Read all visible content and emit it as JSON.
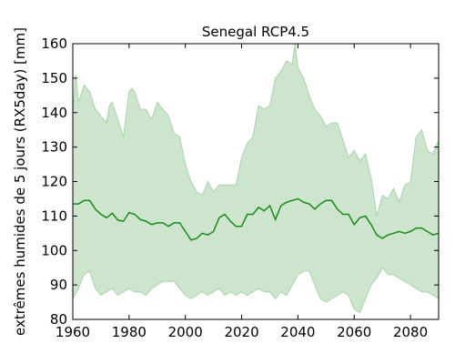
{
  "chart_data": {
    "type": "line",
    "title": "Senegal  RCP4.5",
    "xlabel": "",
    "ylabel": "extrêmes humides de 5 jours (RX5day) [mm]",
    "xlim": [
      1960,
      2090
    ],
    "ylim": [
      80,
      160
    ],
    "xticks": [
      1960,
      1980,
      2000,
      2020,
      2040,
      2060,
      2080
    ],
    "yticks": [
      80,
      90,
      100,
      110,
      120,
      130,
      140,
      150,
      160
    ],
    "grid": false,
    "colors": {
      "line": "#1a8a1a",
      "band": "#cce5cc",
      "band_edge": "#a8d4a8"
    },
    "series": [
      {
        "kind": "line",
        "x": [
          1960,
          1962,
          1964,
          1966,
          1968,
          1970,
          1972,
          1974,
          1976,
          1978,
          1980,
          1982,
          1984,
          1986,
          1988,
          1990,
          1992,
          1994,
          1996,
          1998,
          2000,
          2002,
          2004,
          2006,
          2008,
          2010,
          2012,
          2014,
          2016,
          2018,
          2020,
          2022,
          2024,
          2026,
          2028,
          2030,
          2032,
          2034,
          2036,
          2038,
          2040,
          2042,
          2044,
          2046,
          2048,
          2050,
          2052,
          2054,
          2056,
          2058,
          2060,
          2062,
          2064,
          2066,
          2068,
          2070,
          2072,
          2074,
          2076,
          2078,
          2080,
          2082,
          2084,
          2086,
          2088,
          2090
        ],
        "y": [
          113.5,
          113.5,
          114.5,
          114.5,
          112,
          110.5,
          109.5,
          110.8,
          108.8,
          108.5,
          111,
          110.5,
          109,
          108.5,
          107.5,
          108,
          108,
          107,
          108,
          108,
          105.5,
          103,
          103.5,
          105,
          104.5,
          105.5,
          109.5,
          110.5,
          108.5,
          107,
          107,
          110.5,
          110.5,
          112.5,
          111.5,
          113,
          109,
          113,
          114,
          114.5,
          115,
          114,
          113.5,
          112,
          113.5,
          114.5,
          114.5,
          112,
          110.5,
          110.5,
          107.5,
          109.5,
          110,
          107.5,
          104.5,
          103.5,
          104.5,
          105,
          105.5,
          105,
          105.5,
          106.5,
          106.5,
          105.5,
          104.5,
          105
        ]
      },
      {
        "kind": "band-upper",
        "x": [
          1960,
          1961,
          1962,
          1964,
          1966,
          1968,
          1970,
          1972,
          1973,
          1974,
          1976,
          1978,
          1980,
          1981,
          1982,
          1984,
          1986,
          1988,
          1990,
          1992,
          1994,
          1996,
          1998,
          2000,
          2002,
          2004,
          2006,
          2008,
          2010,
          2012,
          2014,
          2016,
          2018,
          2020,
          2022,
          2024,
          2026,
          2028,
          2030,
          2032,
          2034,
          2036,
          2038,
          2039,
          2040,
          2042,
          2044,
          2046,
          2048,
          2050,
          2052,
          2054,
          2056,
          2058,
          2060,
          2062,
          2064,
          2066,
          2068,
          2070,
          2072,
          2074,
          2076,
          2078,
          2080,
          2082,
          2084,
          2086,
          2088,
          2090
        ],
        "y": [
          140,
          151,
          143,
          148,
          146,
          141,
          139,
          137,
          142,
          143,
          138,
          133,
          146,
          147,
          146,
          141,
          141,
          138,
          143,
          141,
          139,
          134,
          133,
          125,
          120,
          117,
          116,
          120,
          117,
          119,
          119,
          119,
          119,
          127,
          131,
          133,
          142,
          141,
          142,
          150,
          152,
          155,
          154,
          160,
          153,
          150,
          145,
          141,
          139,
          136,
          137,
          137,
          132,
          127,
          129,
          126,
          128,
          121,
          110,
          116,
          115,
          118,
          114,
          119,
          120,
          133,
          135,
          129,
          128,
          132
        ]
      },
      {
        "kind": "band-lower",
        "x": [
          1960,
          1962,
          1964,
          1966,
          1968,
          1970,
          1972,
          1974,
          1976,
          1978,
          1980,
          1982,
          1984,
          1986,
          1988,
          1990,
          1992,
          1994,
          1996,
          1998,
          2000,
          2002,
          2004,
          2006,
          2008,
          2010,
          2012,
          2014,
          2016,
          2018,
          2020,
          2022,
          2024,
          2026,
          2028,
          2030,
          2032,
          2034,
          2036,
          2038,
          2040,
          2042,
          2044,
          2046,
          2048,
          2050,
          2052,
          2054,
          2056,
          2058,
          2060,
          2062,
          2064,
          2066,
          2068,
          2070,
          2072,
          2074,
          2076,
          2078,
          2080,
          2082,
          2084,
          2086,
          2088,
          2090
        ],
        "y": [
          86,
          89,
          93,
          94,
          89,
          87,
          88,
          89,
          87,
          88,
          89,
          88,
          88,
          87,
          89,
          90,
          91,
          91,
          91,
          89,
          87,
          86,
          87,
          88,
          87,
          88,
          89,
          87,
          88,
          87,
          88,
          87,
          88,
          89,
          88,
          88,
          86,
          88,
          87,
          90,
          93,
          94,
          94,
          90,
          86,
          85,
          86,
          87,
          88,
          87,
          83,
          82,
          86,
          90,
          92,
          95,
          93,
          93,
          92,
          91,
          90,
          89,
          88,
          88,
          87,
          86
        ]
      }
    ]
  }
}
